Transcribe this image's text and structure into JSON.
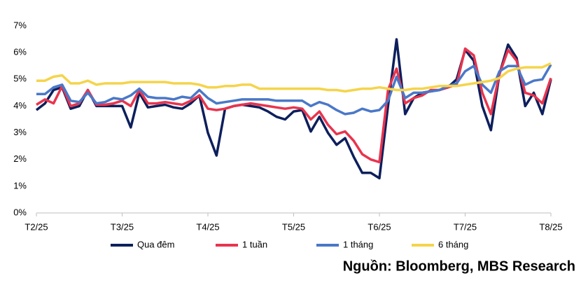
{
  "chart_data": {
    "type": "line",
    "source": "Nguồn: Bloomberg, MBS Research",
    "categories": [
      "T2/25",
      null,
      null,
      null,
      null,
      null,
      null,
      null,
      null,
      null,
      "T3/25",
      null,
      null,
      null,
      null,
      null,
      null,
      null,
      null,
      null,
      "T4/25",
      null,
      null,
      null,
      null,
      null,
      null,
      null,
      null,
      null,
      "T5/25",
      null,
      null,
      null,
      null,
      null,
      null,
      null,
      null,
      null,
      "T6/25",
      null,
      null,
      null,
      null,
      null,
      null,
      null,
      null,
      null,
      "T7/25",
      null,
      null,
      null,
      null,
      null,
      null,
      null,
      null,
      null,
      "T8/25"
    ],
    "ylim": [
      0,
      7
    ],
    "yticks": [
      {
        "value": 0,
        "label": "0%"
      },
      {
        "value": 1,
        "label": "1%"
      },
      {
        "value": 2,
        "label": "2%"
      },
      {
        "value": 3,
        "label": "3%"
      },
      {
        "value": 4,
        "label": "4%"
      },
      {
        "value": 5,
        "label": "5%"
      },
      {
        "value": 6,
        "label": "6%"
      },
      {
        "value": 7,
        "label": "7%"
      }
    ],
    "grid": false,
    "legend": "bottom",
    "series": [
      {
        "name": "Qua đêm",
        "color": "#0d1f5c",
        "values": [
          3.85,
          4.1,
          4.6,
          4.7,
          3.9,
          4.0,
          4.6,
          4.0,
          4.0,
          4.0,
          4.0,
          3.2,
          4.5,
          3.95,
          4.0,
          4.05,
          3.95,
          3.9,
          4.1,
          4.4,
          3.0,
          2.15,
          3.9,
          4.0,
          4.05,
          4.0,
          3.95,
          3.8,
          3.6,
          3.5,
          3.8,
          3.85,
          3.05,
          3.6,
          3.0,
          2.55,
          2.8,
          2.1,
          1.5,
          1.5,
          1.3,
          4.0,
          6.5,
          3.7,
          4.3,
          4.5,
          4.55,
          4.6,
          4.7,
          5.0,
          6.1,
          5.7,
          4.0,
          3.1,
          5.2,
          6.3,
          5.8,
          4.0,
          4.5,
          3.7,
          5.0
        ]
      },
      {
        "name": "1 tuần",
        "color": "#e8344e",
        "values": [
          4.05,
          4.25,
          4.1,
          4.75,
          4.0,
          4.1,
          4.6,
          4.05,
          4.05,
          4.1,
          4.2,
          4.0,
          4.6,
          4.1,
          4.1,
          4.15,
          4.1,
          4.05,
          4.2,
          4.4,
          3.9,
          3.85,
          3.9,
          4.0,
          4.05,
          4.1,
          4.05,
          4.0,
          3.95,
          3.9,
          3.95,
          3.9,
          3.5,
          3.8,
          3.3,
          2.95,
          3.05,
          2.7,
          2.2,
          2.0,
          1.9,
          4.6,
          5.4,
          4.1,
          4.3,
          4.4,
          4.6,
          4.6,
          4.7,
          4.8,
          6.15,
          5.9,
          4.5,
          3.7,
          5.2,
          6.1,
          5.7,
          4.5,
          4.4,
          4.1,
          5.05
        ]
      },
      {
        "name": "1 tháng",
        "color": "#4a78c8",
        "values": [
          4.45,
          4.45,
          4.7,
          4.8,
          4.2,
          4.15,
          4.5,
          4.1,
          4.15,
          4.3,
          4.25,
          4.4,
          4.65,
          4.35,
          4.3,
          4.3,
          4.25,
          4.35,
          4.3,
          4.6,
          4.3,
          4.1,
          4.15,
          4.2,
          4.25,
          4.25,
          4.25,
          4.25,
          4.2,
          4.2,
          4.2,
          4.2,
          4.0,
          4.15,
          4.05,
          3.85,
          3.7,
          3.75,
          3.9,
          3.8,
          3.85,
          4.2,
          5.1,
          4.3,
          4.5,
          4.5,
          4.55,
          4.6,
          4.75,
          4.85,
          5.3,
          5.5,
          4.8,
          4.5,
          5.3,
          5.5,
          5.5,
          4.8,
          4.95,
          5.0,
          5.55
        ]
      },
      {
        "name": "6 tháng",
        "color": "#f5d44a",
        "values": [
          4.95,
          4.95,
          5.1,
          5.15,
          4.85,
          4.85,
          4.95,
          4.8,
          4.85,
          4.85,
          4.85,
          4.9,
          4.9,
          4.9,
          4.9,
          4.9,
          4.85,
          4.85,
          4.85,
          4.8,
          4.7,
          4.7,
          4.75,
          4.75,
          4.8,
          4.8,
          4.65,
          4.65,
          4.65,
          4.65,
          4.65,
          4.65,
          4.65,
          4.65,
          4.6,
          4.6,
          4.55,
          4.6,
          4.65,
          4.65,
          4.7,
          4.65,
          4.6,
          4.6,
          4.65,
          4.65,
          4.7,
          4.75,
          4.75,
          4.75,
          4.8,
          4.85,
          4.9,
          4.95,
          5.05,
          5.3,
          5.4,
          5.45,
          5.45,
          5.45,
          5.6
        ]
      }
    ]
  }
}
